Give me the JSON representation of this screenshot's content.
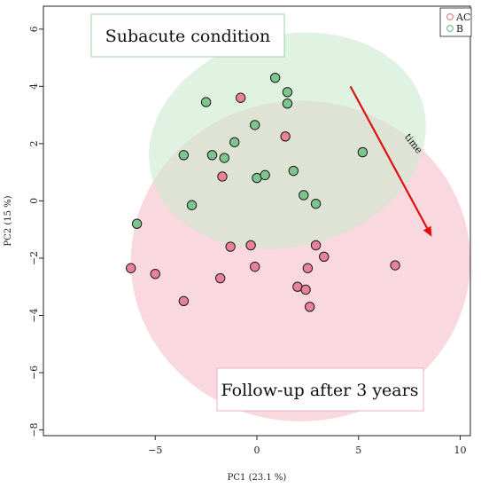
{
  "chart_data": {
    "type": "scatter",
    "xlabel": "PC1 (23.1 %)",
    "ylabel": "PC2 (15 %)",
    "xlim": [
      -10.5,
      10.5
    ],
    "ylim": [
      -8.2,
      6.8
    ],
    "x_ticks": [
      -5,
      0,
      5,
      10
    ],
    "y_ticks": [
      -8,
      -6,
      -4,
      -2,
      0,
      2,
      4,
      6
    ],
    "x_tick_labels": [
      "−5",
      "0",
      "5",
      "10"
    ],
    "y_tick_labels": [
      "−8",
      "−6",
      "−4",
      "−2",
      "0",
      "2",
      "4",
      "6"
    ],
    "grid": false,
    "legend_position": "top-right",
    "series": [
      {
        "name": "AC",
        "color": "#e9819a",
        "fill": "#f5b9c7",
        "points": [
          [
            -6.2,
            -2.35
          ],
          [
            -5.0,
            -2.55
          ],
          [
            -3.6,
            -3.5
          ],
          [
            -1.8,
            -2.7
          ],
          [
            -1.7,
            0.85
          ],
          [
            -1.3,
            -1.6
          ],
          [
            -0.8,
            3.6
          ],
          [
            -0.3,
            -1.55
          ],
          [
            -0.1,
            -2.3
          ],
          [
            1.4,
            2.25
          ],
          [
            2.0,
            -3.0
          ],
          [
            2.4,
            -3.1
          ],
          [
            2.5,
            -2.35
          ],
          [
            2.6,
            -3.7
          ],
          [
            2.9,
            -1.55
          ],
          [
            3.3,
            -1.95
          ],
          [
            6.8,
            -2.25
          ]
        ]
      },
      {
        "name": "B",
        "color": "#7ec48e",
        "fill": "#cbe8cf",
        "points": [
          [
            -5.9,
            -0.8
          ],
          [
            -3.6,
            1.6
          ],
          [
            -3.2,
            -0.15
          ],
          [
            -2.5,
            3.45
          ],
          [
            -2.2,
            1.6
          ],
          [
            -1.6,
            1.5
          ],
          [
            -1.1,
            2.05
          ],
          [
            -0.1,
            2.65
          ],
          [
            0.0,
            0.8
          ],
          [
            0.4,
            0.9
          ],
          [
            0.9,
            4.3
          ],
          [
            1.5,
            3.8
          ],
          [
            1.5,
            3.4
          ],
          [
            1.8,
            1.05
          ],
          [
            2.3,
            0.2
          ],
          [
            2.9,
            -0.1
          ],
          [
            5.2,
            1.7
          ]
        ]
      }
    ],
    "ellipses": [
      {
        "group": "AC",
        "color": "#f5c0cc",
        "cx": 2.15,
        "cy": -2.1,
        "rx": 8.35,
        "ry": 5.6,
        "angle_deg": 0
      },
      {
        "group": "B",
        "color": "#cdeacf",
        "cx": 1.5,
        "cy": 2.1,
        "rx": 6.9,
        "ry": 3.7,
        "angle_deg": 14
      }
    ],
    "annotations": {
      "box_top": "Subacute condition",
      "box_bottom": "Follow-up after 3 years",
      "arrow_label": "time",
      "arrow": {
        "from": [
          4.6,
          4.0
        ],
        "to": [
          8.6,
          -1.25
        ],
        "color": "#e01010"
      }
    }
  }
}
